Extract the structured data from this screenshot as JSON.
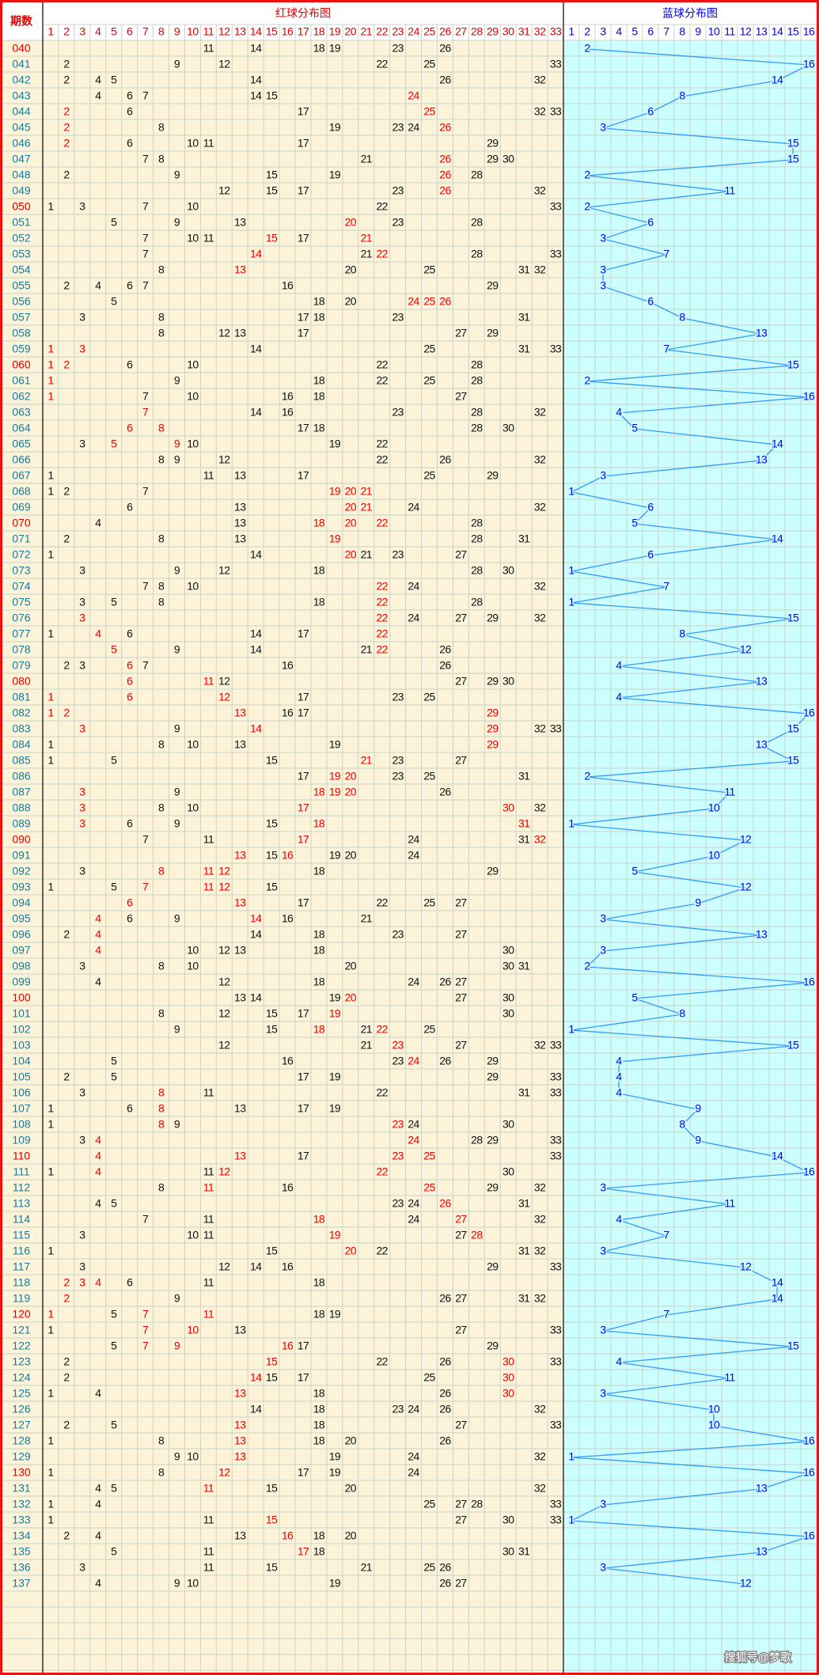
{
  "header": {
    "period_title": "期数",
    "red_title": "红球分布图",
    "blue_title": "蓝球分布图",
    "red_columns": [
      1,
      2,
      3,
      4,
      5,
      6,
      7,
      8,
      9,
      10,
      11,
      12,
      13,
      14,
      15,
      16,
      17,
      18,
      19,
      20,
      21,
      22,
      23,
      24,
      25,
      26,
      27,
      28,
      29,
      30,
      31,
      32,
      33
    ],
    "blue_columns": [
      1,
      2,
      3,
      4,
      5,
      6,
      7,
      8,
      9,
      10,
      11,
      12,
      13,
      14,
      15,
      16
    ]
  },
  "periods": [
    "040",
    "041",
    "042",
    "043",
    "044",
    "045",
    "046",
    "047",
    "048",
    "049",
    "050",
    "051",
    "052",
    "053",
    "054",
    "055",
    "056",
    "057",
    "058",
    "059",
    "060",
    "061",
    "062",
    "063",
    "064",
    "065",
    "066",
    "067",
    "068",
    "069",
    "070",
    "071",
    "072",
    "073",
    "074",
    "075",
    "076",
    "077",
    "078",
    "079",
    "080",
    "081",
    "082",
    "083",
    "084",
    "085",
    "086",
    "087",
    "088",
    "089",
    "090",
    "091",
    "092",
    "093",
    "094",
    "095",
    "096",
    "097",
    "098",
    "099",
    "100",
    "101",
    "102",
    "103",
    "104",
    "105",
    "106",
    "107",
    "108",
    "109",
    "110",
    "111",
    "112",
    "113",
    "114",
    "115",
    "116",
    "117",
    "118",
    "119",
    "120",
    "121",
    "122",
    "123",
    "124",
    "125",
    "126",
    "127",
    "128",
    "129",
    "130",
    "131",
    "132",
    "133",
    "134",
    "135",
    "136",
    "137"
  ],
  "reds": [
    [
      11,
      14,
      18,
      19,
      23,
      26
    ],
    [
      2,
      9,
      12,
      22,
      25,
      33
    ],
    [
      2,
      4,
      5,
      14,
      26,
      32
    ],
    [
      4,
      6,
      7,
      14,
      15,
      24
    ],
    [
      2,
      6,
      17,
      25,
      32,
      33
    ],
    [
      2,
      8,
      19,
      23,
      24,
      26
    ],
    [
      2,
      6,
      10,
      11,
      17,
      29
    ],
    [
      7,
      8,
      21,
      26,
      29,
      30
    ],
    [
      2,
      9,
      15,
      19,
      26,
      28
    ],
    [
      12,
      15,
      17,
      23,
      26,
      32
    ],
    [
      1,
      3,
      7,
      10,
      22,
      33
    ],
    [
      5,
      9,
      13,
      20,
      23,
      28
    ],
    [
      7,
      10,
      11,
      15,
      17,
      21
    ],
    [
      7,
      14,
      21,
      22,
      28,
      33
    ],
    [
      8,
      13,
      20,
      25,
      31,
      32
    ],
    [
      2,
      4,
      6,
      7,
      16,
      29
    ],
    [
      5,
      18,
      20,
      24,
      25,
      26
    ],
    [
      3,
      8,
      17,
      18,
      23,
      31
    ],
    [
      8,
      12,
      13,
      17,
      27,
      29
    ],
    [
      1,
      3,
      14,
      25,
      31,
      33
    ],
    [
      1,
      2,
      6,
      10,
      22,
      28
    ],
    [
      1,
      9,
      18,
      22,
      25,
      28
    ],
    [
      1,
      7,
      10,
      16,
      18,
      27
    ],
    [
      7,
      14,
      16,
      23,
      28,
      32
    ],
    [
      6,
      8,
      17,
      18,
      28,
      30
    ],
    [
      3,
      5,
      9,
      10,
      19,
      22
    ],
    [
      8,
      9,
      12,
      22,
      26,
      32
    ],
    [
      1,
      11,
      13,
      17,
      25,
      29
    ],
    [
      1,
      2,
      7,
      19,
      20,
      21
    ],
    [
      6,
      13,
      20,
      21,
      24,
      32
    ],
    [
      4,
      13,
      18,
      20,
      22,
      28
    ],
    [
      2,
      8,
      13,
      19,
      28,
      31
    ],
    [
      1,
      14,
      20,
      21,
      23,
      27
    ],
    [
      3,
      9,
      12,
      18,
      28,
      30
    ],
    [
      7,
      8,
      10,
      22,
      24,
      32
    ],
    [
      3,
      5,
      8,
      18,
      22,
      28
    ],
    [
      3,
      22,
      24,
      27,
      29,
      32
    ],
    [
      1,
      4,
      6,
      14,
      17,
      22
    ],
    [
      5,
      9,
      14,
      21,
      22,
      26
    ],
    [
      2,
      3,
      6,
      7,
      16,
      26
    ],
    [
      6,
      11,
      12,
      27,
      29,
      30
    ],
    [
      1,
      6,
      12,
      17,
      23,
      25
    ],
    [
      1,
      2,
      13,
      16,
      17,
      29
    ],
    [
      3,
      9,
      14,
      29,
      32,
      33
    ],
    [
      1,
      8,
      10,
      13,
      19,
      29
    ],
    [
      1,
      5,
      15,
      21,
      23,
      27
    ],
    [
      17,
      19,
      20,
      23,
      25,
      31
    ],
    [
      3,
      9,
      18,
      19,
      20,
      26
    ],
    [
      3,
      8,
      10,
      17,
      30,
      32
    ],
    [
      3,
      6,
      9,
      15,
      18,
      31
    ],
    [
      7,
      11,
      17,
      24,
      31,
      32
    ],
    [
      13,
      15,
      16,
      19,
      20,
      24
    ],
    [
      3,
      8,
      11,
      12,
      18,
      29
    ],
    [
      1,
      5,
      7,
      11,
      12,
      15
    ],
    [
      6,
      13,
      17,
      22,
      25,
      27
    ],
    [
      4,
      6,
      9,
      14,
      16,
      21
    ],
    [
      2,
      4,
      14,
      18,
      23,
      27
    ],
    [
      4,
      10,
      12,
      13,
      18,
      30
    ],
    [
      3,
      8,
      10,
      20,
      30,
      31
    ],
    [
      4,
      12,
      18,
      24,
      26,
      27
    ],
    [
      13,
      14,
      19,
      20,
      27,
      30
    ],
    [
      8,
      12,
      15,
      17,
      19,
      30
    ],
    [
      9,
      15,
      18,
      21,
      22,
      25
    ],
    [
      12,
      21,
      23,
      27,
      32,
      33
    ],
    [
      5,
      16,
      23,
      24,
      26,
      29
    ],
    [
      2,
      5,
      17,
      19,
      29,
      33
    ],
    [
      3,
      8,
      11,
      22,
      31,
      33
    ],
    [
      1,
      6,
      8,
      13,
      17,
      19
    ],
    [
      1,
      8,
      9,
      23,
      24,
      30
    ],
    [
      3,
      4,
      24,
      28,
      29,
      33
    ],
    [
      4,
      13,
      17,
      23,
      25,
      33
    ],
    [
      1,
      4,
      11,
      12,
      22,
      30
    ],
    [
      8,
      11,
      16,
      25,
      29,
      32
    ],
    [
      4,
      5,
      23,
      24,
      26,
      31
    ],
    [
      7,
      11,
      18,
      24,
      27,
      32
    ],
    [
      3,
      10,
      11,
      19,
      27,
      28
    ],
    [
      1,
      15,
      20,
      22,
      31,
      32
    ],
    [
      3,
      12,
      14,
      16,
      29,
      33
    ],
    [
      2,
      3,
      4,
      6,
      11,
      18
    ],
    [
      2,
      9,
      26,
      27,
      31,
      32
    ],
    [
      1,
      5,
      7,
      11,
      18,
      19
    ],
    [
      1,
      7,
      10,
      13,
      27,
      33
    ],
    [
      5,
      7,
      9,
      16,
      17,
      29
    ],
    [
      2,
      15,
      22,
      26,
      30,
      33
    ],
    [
      2,
      14,
      15,
      17,
      25,
      30
    ],
    [
      1,
      4,
      13,
      18,
      26,
      30
    ],
    [
      14,
      18,
      23,
      24,
      26,
      32
    ],
    [
      2,
      5,
      13,
      18,
      27,
      33
    ],
    [
      1,
      8,
      13,
      18,
      20,
      26
    ],
    [
      9,
      10,
      13,
      19,
      24,
      32
    ],
    [
      1,
      8,
      12,
      17,
      19,
      24
    ],
    [
      4,
      5,
      11,
      15,
      20,
      32
    ],
    [
      1,
      4,
      25,
      27,
      28,
      33
    ],
    [
      1,
      11,
      15,
      27,
      30,
      33
    ],
    [
      2,
      4,
      13,
      16,
      18,
      20
    ],
    [
      5,
      11,
      17,
      18,
      30,
      31
    ],
    [
      3,
      11,
      15,
      21,
      25,
      26
    ],
    [
      4,
      9,
      10,
      19,
      26,
      27
    ]
  ],
  "highlighted": [
    [],
    [],
    [],
    [
      24
    ],
    [
      2,
      25
    ],
    [
      2,
      26
    ],
    [
      2
    ],
    [
      26
    ],
    [
      26
    ],
    [
      26
    ],
    [],
    [
      20
    ],
    [
      15,
      21
    ],
    [
      14,
      22
    ],
    [
      13
    ],
    [],
    [
      24,
      25,
      26
    ],
    [],
    [],
    [
      1,
      3
    ],
    [
      1,
      2
    ],
    [
      1
    ],
    [
      1
    ],
    [
      7
    ],
    [
      6,
      8
    ],
    [
      5,
      9
    ],
    [],
    [],
    [
      19,
      20,
      21
    ],
    [
      20,
      21
    ],
    [
      18,
      20,
      22
    ],
    [
      19
    ],
    [
      20
    ],
    [],
    [
      22
    ],
    [
      22
    ],
    [
      3,
      22
    ],
    [
      4,
      22
    ],
    [
      5,
      22
    ],
    [
      6
    ],
    [
      6,
      11
    ],
    [
      1,
      6,
      12
    ],
    [
      1,
      2,
      13,
      29
    ],
    [
      3,
      14,
      29
    ],
    [
      29
    ],
    [
      21
    ],
    [
      19,
      20
    ],
    [
      3,
      18,
      19,
      20
    ],
    [
      3,
      17,
      30
    ],
    [
      3,
      18,
      31
    ],
    [
      17,
      32
    ],
    [
      13,
      16
    ],
    [
      8,
      11,
      12
    ],
    [
      7,
      11,
      12
    ],
    [
      6,
      13
    ],
    [
      4,
      14
    ],
    [
      4
    ],
    [
      4
    ],
    [],
    [],
    [
      20
    ],
    [
      19
    ],
    [
      18,
      22
    ],
    [
      23
    ],
    [
      24
    ],
    [],
    [
      8
    ],
    [
      8
    ],
    [
      8,
      23
    ],
    [
      4,
      24
    ],
    [
      4,
      13,
      23,
      25
    ],
    [
      4,
      12,
      22
    ],
    [
      11,
      25
    ],
    [
      26
    ],
    [
      18,
      27
    ],
    [
      19,
      28
    ],
    [
      20
    ],
    [],
    [
      2,
      3,
      4
    ],
    [
      2
    ],
    [
      1,
      7,
      11
    ],
    [
      7,
      10
    ],
    [
      7,
      9,
      16
    ],
    [
      15,
      30
    ],
    [
      14,
      30
    ],
    [
      13,
      30
    ],
    [],
    [
      13
    ],
    [
      13
    ],
    [
      13
    ],
    [
      12
    ],
    [
      11
    ],
    [],
    [
      15
    ],
    [
      16
    ],
    [
      17
    ],
    [],
    []
  ],
  "blues": [
    2,
    16,
    14,
    8,
    6,
    3,
    15,
    15,
    2,
    11,
    2,
    6,
    3,
    7,
    3,
    3,
    6,
    8,
    13,
    7,
    15,
    2,
    16,
    4,
    5,
    14,
    13,
    3,
    1,
    6,
    5,
    14,
    6,
    1,
    7,
    1,
    15,
    8,
    12,
    4,
    13,
    4,
    16,
    15,
    13,
    15,
    2,
    11,
    10,
    1,
    12,
    10,
    5,
    12,
    9,
    3,
    13,
    3,
    2,
    16,
    5,
    8,
    1,
    15,
    4,
    4,
    4,
    9,
    8,
    9,
    14,
    16,
    3,
    11,
    4,
    7,
    3,
    12,
    14,
    14,
    7,
    3,
    15,
    4,
    11,
    3,
    10,
    10,
    16,
    1,
    16,
    13,
    3,
    1,
    16,
    13,
    3,
    12
  ],
  "watermark": "搜狐号@梦歌"
}
